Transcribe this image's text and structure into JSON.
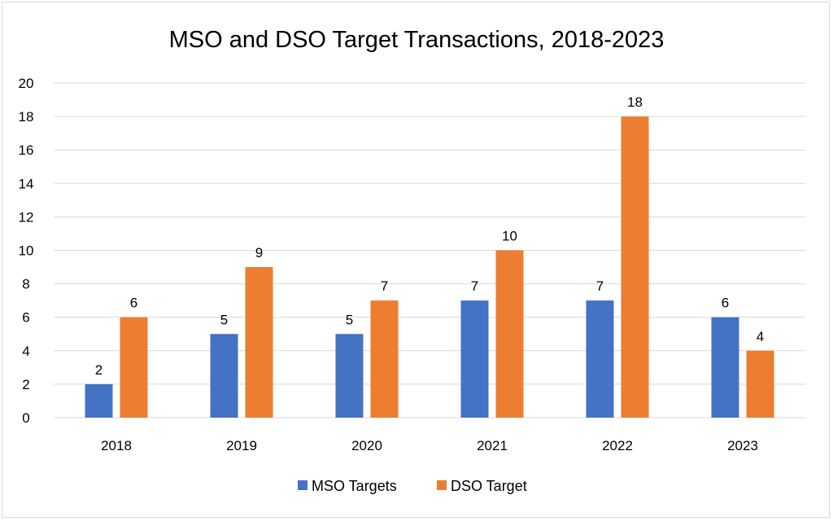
{
  "chart_data": {
    "type": "bar",
    "title": "MSO and DSO Target Transactions, 2018-2023",
    "xlabel": "",
    "ylabel": "",
    "categories": [
      "2018",
      "2019",
      "2020",
      "2021",
      "2022",
      "2023"
    ],
    "series": [
      {
        "name": "MSO Targets",
        "color": "#4472c4",
        "values": [
          2,
          5,
          5,
          7,
          7,
          6
        ]
      },
      {
        "name": "DSO Target",
        "color": "#ed7d31",
        "values": [
          6,
          9,
          7,
          10,
          18,
          4
        ]
      }
    ],
    "ylim": [
      0,
      20
    ],
    "yticks": [
      0,
      2,
      4,
      6,
      8,
      10,
      12,
      14,
      16,
      18,
      20
    ],
    "grid": true,
    "data_labels": true,
    "legend": "bottom"
  }
}
